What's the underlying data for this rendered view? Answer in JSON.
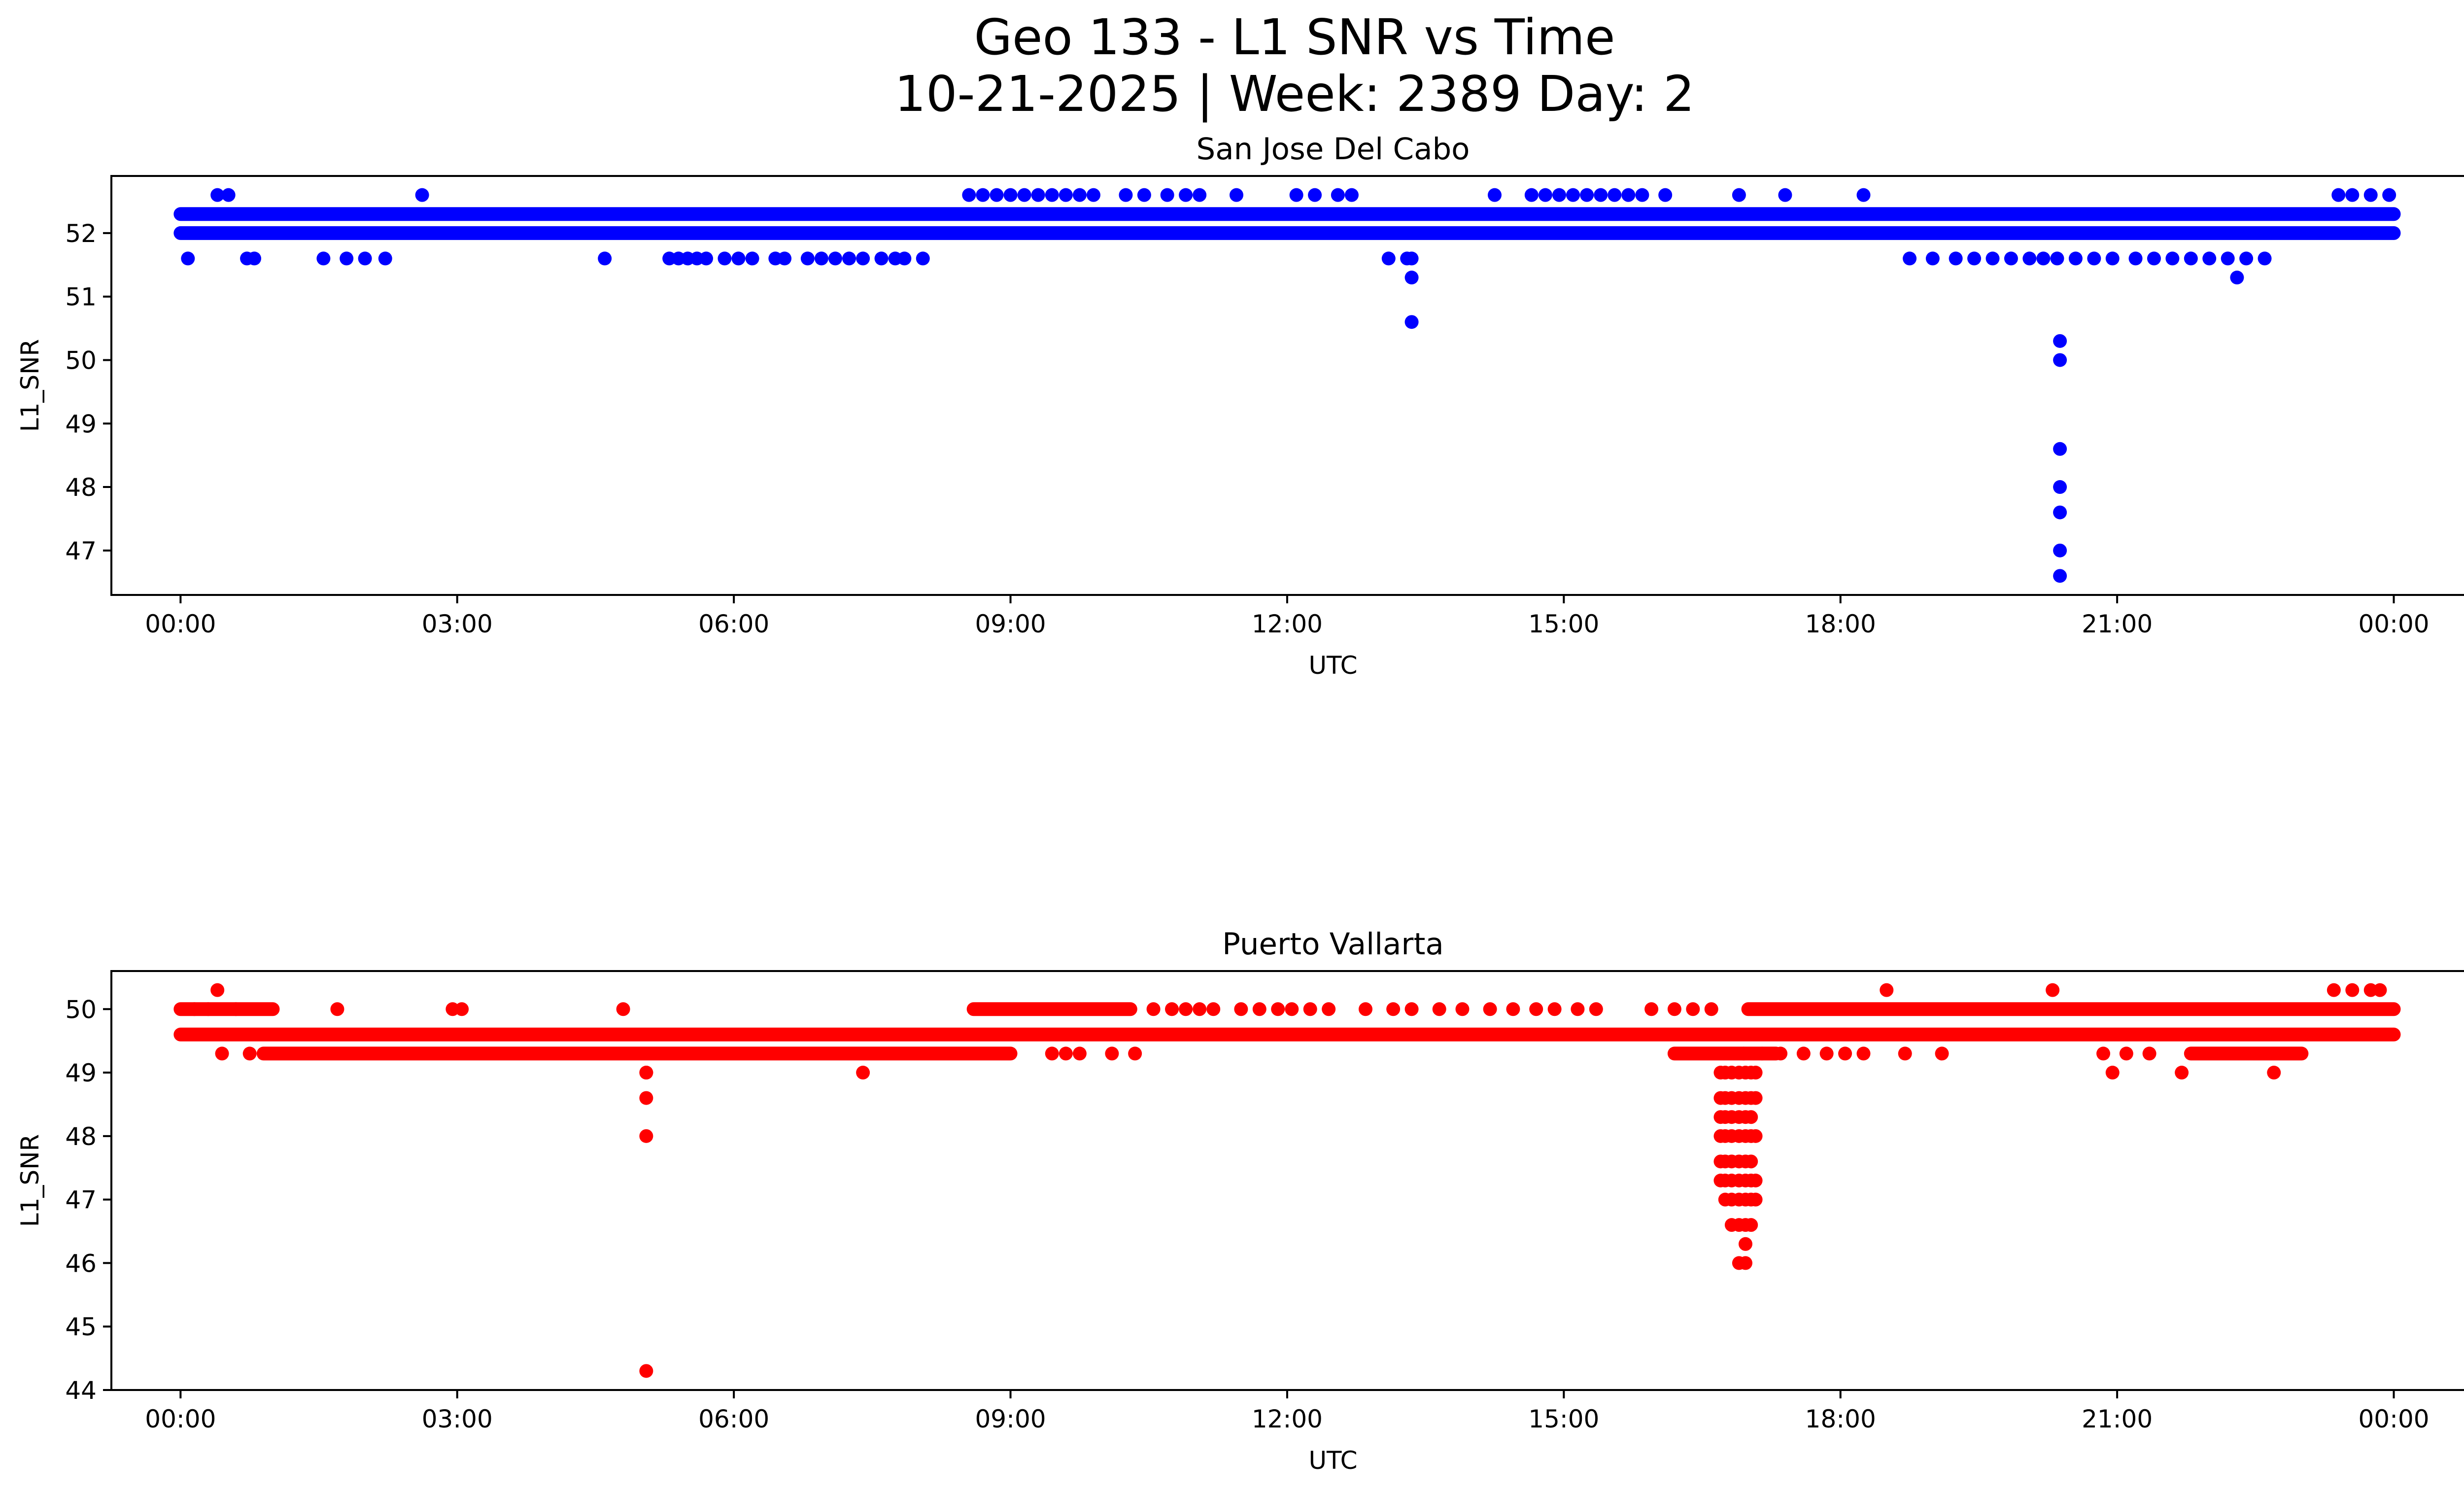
{
  "figure": {
    "title_line1": "Geo 133 - L1 SNR vs Time",
    "title_line2": "10-21-2025 | Week: 2389 Day: 2"
  },
  "chart_data": [
    {
      "type": "scatter",
      "title": "San Jose Del Cabo",
      "xlabel": "UTC",
      "ylabel": "L1_SNR",
      "color": "#0000ff",
      "xlim": [
        -0.75,
        25.75
      ],
      "ylim": [
        46.3,
        52.9
      ],
      "xticks": [
        0,
        3,
        6,
        9,
        12,
        15,
        18,
        21,
        24
      ],
      "xtick_labels": [
        "00:00",
        "03:00",
        "06:00",
        "09:00",
        "12:00",
        "15:00",
        "18:00",
        "21:00",
        "00:00"
      ],
      "yticks": [
        47,
        48,
        49,
        50,
        51,
        52
      ],
      "ytick_labels": [
        "47",
        "48",
        "49",
        "50",
        "51",
        "52"
      ],
      "bands": [
        {
          "y": 52.0,
          "x_start": 0.0,
          "x_end": 24.0
        },
        {
          "y": 52.3,
          "x_start": 0.0,
          "x_end": 24.0
        }
      ],
      "x": [
        0.08,
        0.4,
        0.52,
        0.72,
        0.8,
        1.55,
        1.8,
        2.0,
        2.22,
        2.62,
        4.6,
        5.3,
        5.4,
        5.5,
        5.6,
        5.7,
        5.9,
        6.05,
        6.2,
        6.45,
        6.55,
        6.8,
        6.95,
        7.1,
        7.25,
        7.4,
        7.6,
        7.75,
        7.85,
        8.05,
        8.55,
        8.7,
        8.85,
        9.0,
        9.15,
        9.3,
        9.45,
        9.6,
        9.75,
        9.9,
        10.25,
        10.45,
        10.7,
        10.9,
        11.05,
        11.45,
        12.1,
        12.3,
        12.55,
        12.7,
        13.1,
        13.3,
        13.35,
        13.35,
        13.35,
        14.25,
        14.65,
        14.8,
        14.95,
        15.1,
        15.25,
        15.4,
        15.55,
        15.7,
        15.85,
        16.1,
        16.9,
        17.4,
        18.25,
        18.75,
        19.0,
        19.25,
        19.45,
        19.65,
        19.85,
        20.05,
        20.2,
        20.35,
        20.55,
        20.75,
        20.95,
        21.2,
        21.4,
        21.6,
        21.8,
        22.0,
        22.2,
        22.3,
        22.4,
        22.6,
        23.4,
        23.55,
        23.75,
        23.95,
        20.38,
        20.38,
        20.38,
        20.38,
        20.38,
        20.38,
        20.38
      ],
      "y": [
        51.6,
        52.6,
        52.6,
        51.6,
        51.6,
        51.6,
        51.6,
        51.6,
        51.6,
        52.6,
        51.6,
        51.6,
        51.6,
        51.6,
        51.6,
        51.6,
        51.6,
        51.6,
        51.6,
        51.6,
        51.6,
        51.6,
        51.6,
        51.6,
        51.6,
        51.6,
        51.6,
        51.6,
        51.6,
        51.6,
        52.6,
        52.6,
        52.6,
        52.6,
        52.6,
        52.6,
        52.6,
        52.6,
        52.6,
        52.6,
        52.6,
        52.6,
        52.6,
        52.6,
        52.6,
        52.6,
        52.6,
        52.6,
        52.6,
        52.6,
        51.6,
        51.6,
        51.3,
        50.6,
        51.6,
        52.6,
        52.6,
        52.6,
        52.6,
        52.6,
        52.6,
        52.6,
        52.6,
        52.6,
        52.6,
        52.6,
        52.6,
        52.6,
        52.6,
        51.6,
        51.6,
        51.6,
        51.6,
        51.6,
        51.6,
        51.6,
        51.6,
        51.6,
        51.6,
        51.6,
        51.6,
        51.6,
        51.6,
        51.6,
        51.6,
        51.6,
        51.6,
        51.3,
        51.6,
        51.6,
        52.6,
        52.6,
        52.6,
        52.6,
        50.3,
        50.0,
        48.6,
        48.0,
        47.6,
        47.0,
        46.6
      ]
    },
    {
      "type": "scatter",
      "title": "Puerto Vallarta",
      "xlabel": "UTC",
      "ylabel": "L1_SNR",
      "color": "#ff0000",
      "xlim": [
        -0.75,
        25.75
      ],
      "ylim": [
        44.0,
        50.6
      ],
      "xticks": [
        0,
        3,
        6,
        9,
        12,
        15,
        18,
        21,
        24
      ],
      "xtick_labels": [
        "00:00",
        "03:00",
        "06:00",
        "09:00",
        "12:00",
        "15:00",
        "18:00",
        "21:00",
        "00:00"
      ],
      "yticks": [
        44,
        45,
        46,
        47,
        48,
        49,
        50
      ],
      "ytick_labels": [
        "44",
        "45",
        "46",
        "47",
        "48",
        "49",
        "50"
      ],
      "bands": [
        {
          "y": 49.6,
          "x_start": 0.0,
          "x_end": 24.0
        },
        {
          "y": 50.0,
          "x_start": 0.0,
          "x_end": 1.0
        },
        {
          "y": 50.0,
          "x_start": 8.6,
          "x_end": 10.3
        },
        {
          "y": 50.0,
          "x_start": 17.0,
          "x_end": 24.0
        },
        {
          "y": 49.3,
          "x_start": 0.9,
          "x_end": 9.0
        },
        {
          "y": 49.3,
          "x_start": 16.2,
          "x_end": 17.3
        },
        {
          "y": 49.3,
          "x_start": 21.8,
          "x_end": 23.0
        }
      ],
      "x": [
        0.15,
        0.3,
        0.4,
        0.45,
        0.6,
        0.75,
        1.7,
        2.95,
        3.05,
        4.8,
        5.05,
        5.05,
        5.05,
        5.05,
        5.05,
        7.4,
        9.45,
        9.6,
        9.75,
        10.1,
        10.35,
        10.55,
        10.75,
        10.9,
        11.05,
        11.2,
        11.5,
        11.7,
        11.9,
        12.05,
        12.25,
        12.45,
        12.85,
        13.15,
        13.35,
        13.65,
        13.9,
        14.2,
        14.45,
        14.7,
        14.9,
        15.15,
        15.35,
        15.95,
        16.2,
        16.4,
        16.6,
        16.95,
        17.15,
        17.35,
        17.6,
        17.85,
        18.05,
        18.25,
        18.5,
        18.7,
        19.1,
        20.3,
        20.85,
        20.95,
        21.1,
        21.35,
        21.7,
        22.7,
        23.35,
        23.55,
        23.75,
        23.85
      ],
      "y": [
        50.0,
        50.0,
        50.3,
        49.3,
        50.0,
        49.3,
        50.0,
        50.0,
        50.0,
        50.0,
        49.0,
        48.6,
        48.0,
        44.3,
        49.0,
        49.0,
        49.3,
        49.3,
        49.3,
        49.3,
        49.3,
        50.0,
        50.0,
        50.0,
        50.0,
        50.0,
        50.0,
        50.0,
        50.0,
        50.0,
        50.0,
        50.0,
        50.0,
        50.0,
        50.0,
        50.0,
        50.0,
        50.0,
        50.0,
        50.0,
        50.0,
        50.0,
        50.0,
        50.0,
        50.0,
        50.0,
        50.0,
        49.3,
        49.3,
        49.3,
        49.3,
        49.3,
        49.3,
        49.3,
        50.3,
        49.3,
        49.3,
        50.3,
        49.3,
        49.0,
        49.3,
        49.3,
        49.0,
        49.0,
        50.3,
        50.3,
        50.3,
        50.3
      ],
      "cluster": {
        "x": [
          16.7,
          16.75,
          16.82,
          16.9,
          16.97,
          17.03,
          17.08
        ],
        "y_values": [
          [
            49.0,
            48.6,
            48.3,
            48.0,
            47.6,
            47.3
          ],
          [
            49.0,
            48.6,
            48.3,
            48.0,
            47.6,
            47.3,
            47.0
          ],
          [
            49.0,
            48.6,
            48.3,
            48.0,
            47.6,
            47.3,
            47.0,
            46.6
          ],
          [
            49.0,
            48.6,
            48.3,
            48.0,
            47.6,
            47.3,
            47.0,
            46.6,
            46.0
          ],
          [
            49.0,
            48.6,
            48.3,
            48.0,
            47.6,
            47.3,
            47.0,
            46.6,
            46.3,
            46.0
          ],
          [
            49.0,
            48.6,
            48.3,
            48.0,
            47.6,
            47.3,
            47.0,
            46.6
          ],
          [
            49.0,
            48.6,
            48.0,
            47.3,
            47.0
          ]
        ]
      }
    }
  ]
}
